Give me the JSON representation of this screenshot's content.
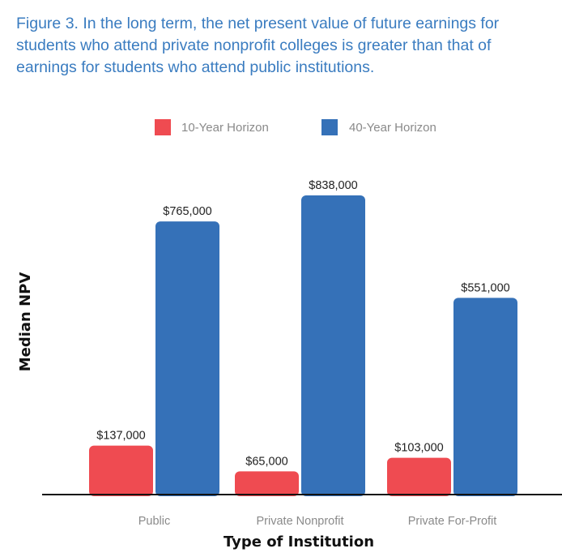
{
  "caption": "Figure 3. In the long term, the net present value of future earnings for students who attend private nonprofit colleges is greater than that of earnings for students who attend public institutions.",
  "colors": {
    "caption": "#3a7cc0",
    "series_10yr": "#ef4b51",
    "series_40yr": "#3571b8",
    "axis": "#111111"
  },
  "chart_data": {
    "type": "bar",
    "title": "",
    "xlabel": "Type of Institution",
    "ylabel": "Median NPV",
    "categories": [
      "Public",
      "Private Nonprofit",
      "Private For-Profit"
    ],
    "series": [
      {
        "name": "10-Year Horizon",
        "values": [
          137000,
          65000,
          103000
        ],
        "labels": [
          "$137,000",
          "$65,000",
          "$103,000"
        ]
      },
      {
        "name": "40-Year Horizon",
        "values": [
          765000,
          838000,
          551000
        ],
        "labels": [
          "$765,000",
          "$838,000",
          "$551,000"
        ]
      }
    ],
    "ylim": [
      0,
      838000
    ],
    "grid": false,
    "legend_position": "top-center"
  }
}
